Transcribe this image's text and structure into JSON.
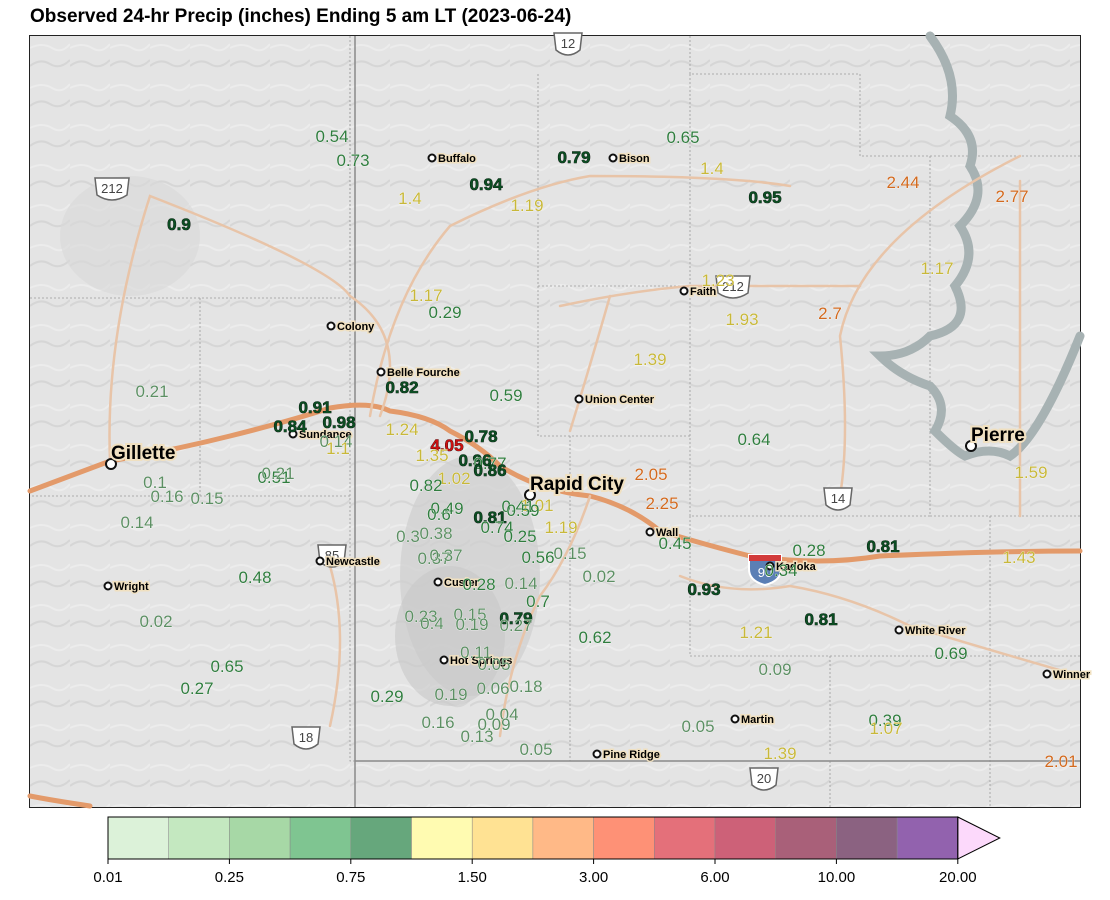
{
  "title": "Observed 24-hr Precip (inches) Ending 5 am LT (2023-06-24)",
  "colors": {
    "dark_green": "#0b4d22",
    "green": "#2f7d3e",
    "light_green": "#5c8f63",
    "yellow": "#c8b83a",
    "orange": "#d2691e",
    "red": "#cc1111"
  },
  "legend": {
    "bins": [
      "#dcf2d9",
      "#c4e8c0",
      "#a7d8a6",
      "#7fc591",
      "#66a77c",
      "#fffbb1",
      "#ffe293",
      "#ffb987",
      "#fe9176",
      "#e4707a",
      "#cd6178",
      "#a96079",
      "#8b6281",
      "#9262ae",
      "#fcd9fb"
    ],
    "ticks": [
      "0.01",
      "0.25",
      "0.75",
      "1.50",
      "3.00",
      "6.00",
      "10.00",
      "20.00"
    ]
  },
  "cities": [
    {
      "name": "Buffalo"
    },
    {
      "name": "Bison"
    },
    {
      "name": "Colony"
    },
    {
      "name": "Belle Fourche"
    },
    {
      "name": "Faith"
    },
    {
      "name": "Union Center"
    },
    {
      "name": "Sundance"
    },
    {
      "name": "Gillette"
    },
    {
      "name": "Pierre"
    },
    {
      "name": "Rapid City"
    },
    {
      "name": "Wall"
    },
    {
      "name": "Kadoka"
    },
    {
      "name": "Newcastle"
    },
    {
      "name": "Custer"
    },
    {
      "name": "Wright"
    },
    {
      "name": "White River"
    },
    {
      "name": "Hot Springs"
    },
    {
      "name": "Winner"
    },
    {
      "name": "Martin"
    },
    {
      "name": "Pine Ridge"
    }
  ],
  "shields": [
    {
      "label": "12"
    },
    {
      "label": "212"
    },
    {
      "label": "212"
    },
    {
      "label": "85"
    },
    {
      "label": "14"
    },
    {
      "label": "90"
    },
    {
      "label": "18"
    },
    {
      "label": "20"
    }
  ],
  "observations": [
    {
      "value": "0.54",
      "cat": "green"
    },
    {
      "value": "0.73",
      "cat": "green"
    },
    {
      "value": "0.9",
      "cat": "dark_green"
    },
    {
      "value": "0.94",
      "cat": "dark_green"
    },
    {
      "value": "1.4",
      "cat": "yellow"
    },
    {
      "value": "1.19",
      "cat": "yellow"
    },
    {
      "value": "0.79",
      "cat": "dark_green"
    },
    {
      "value": "0.65",
      "cat": "green"
    },
    {
      "value": "1.4",
      "cat": "yellow"
    },
    {
      "value": "0.95",
      "cat": "dark_green"
    },
    {
      "value": "2.44",
      "cat": "orange"
    },
    {
      "value": "2.77",
      "cat": "orange"
    },
    {
      "value": "1.17",
      "cat": "yellow"
    },
    {
      "value": "1.23",
      "cat": "yellow"
    },
    {
      "value": "1.17",
      "cat": "yellow"
    },
    {
      "value": "0.29",
      "cat": "green"
    },
    {
      "value": "1.93",
      "cat": "yellow"
    },
    {
      "value": "2.7",
      "cat": "orange"
    },
    {
      "value": "1.39",
      "cat": "yellow"
    },
    {
      "value": "0.21",
      "cat": "light_green"
    },
    {
      "value": "0.82",
      "cat": "dark_green"
    },
    {
      "value": "0.59",
      "cat": "green"
    },
    {
      "value": "0.91",
      "cat": "dark_green"
    },
    {
      "value": "0.84",
      "cat": "dark_green"
    },
    {
      "value": "0.98",
      "cat": "dark_green"
    },
    {
      "value": "1.24",
      "cat": "yellow"
    },
    {
      "value": "0.78",
      "cat": "dark_green"
    },
    {
      "value": "0.14",
      "cat": "light_green"
    },
    {
      "value": "1.1",
      "cat": "yellow"
    },
    {
      "value": "4.05",
      "cat": "red"
    },
    {
      "value": "1.35",
      "cat": "yellow"
    },
    {
      "value": "0.96",
      "cat": "dark_green"
    },
    {
      "value": "0.77",
      "cat": "green"
    },
    {
      "value": "0.86",
      "cat": "dark_green"
    },
    {
      "value": "1.02",
      "cat": "yellow"
    },
    {
      "value": "0.82",
      "cat": "green"
    },
    {
      "value": "0.64",
      "cat": "green"
    },
    {
      "value": "2.05",
      "cat": "orange"
    },
    {
      "value": "2.25",
      "cat": "orange"
    },
    {
      "value": "1.59",
      "cat": "yellow"
    },
    {
      "value": "0.1",
      "cat": "light_green"
    },
    {
      "value": "0.51",
      "cat": "green"
    },
    {
      "value": "0.21",
      "cat": "light_green"
    },
    {
      "value": "0.16",
      "cat": "light_green"
    },
    {
      "value": "0.15",
      "cat": "light_green"
    },
    {
      "value": "0.14",
      "cat": "light_green"
    },
    {
      "value": "0.49",
      "cat": "green"
    },
    {
      "value": "0.6",
      "cat": "green"
    },
    {
      "value": "0.81",
      "cat": "dark_green"
    },
    {
      "value": "0.41",
      "cat": "green"
    },
    {
      "value": "1.01",
      "cat": "yellow"
    },
    {
      "value": "0.59",
      "cat": "green"
    },
    {
      "value": "0.74",
      "cat": "green"
    },
    {
      "value": "1.19",
      "cat": "yellow"
    },
    {
      "value": "0.3",
      "cat": "light_green"
    },
    {
      "value": "0.38",
      "cat": "light_green"
    },
    {
      "value": "0.25",
      "cat": "green"
    },
    {
      "value": "0.45",
      "cat": "green"
    },
    {
      "value": "0.37",
      "cat": "light_green"
    },
    {
      "value": "0.37",
      "cat": "light_green"
    },
    {
      "value": "0.56",
      "cat": "green"
    },
    {
      "value": "0.15",
      "cat": "light_green"
    },
    {
      "value": "0.28",
      "cat": "green"
    },
    {
      "value": "0.81",
      "cat": "dark_green"
    },
    {
      "value": "0.34",
      "cat": "green"
    },
    {
      "value": "1.43",
      "cat": "yellow"
    },
    {
      "value": "0.48",
      "cat": "green"
    },
    {
      "value": "0.02",
      "cat": "light_green"
    },
    {
      "value": "0.28",
      "cat": "green"
    },
    {
      "value": "0.14",
      "cat": "light_green"
    },
    {
      "value": "0.93",
      "cat": "dark_green"
    },
    {
      "value": "0.7",
      "cat": "green"
    },
    {
      "value": "0.02",
      "cat": "light_green"
    },
    {
      "value": "0.23",
      "cat": "light_green"
    },
    {
      "value": "0.15",
      "cat": "light_green"
    },
    {
      "value": "0.79",
      "cat": "dark_green"
    },
    {
      "value": "0.4",
      "cat": "light_green"
    },
    {
      "value": "0.19",
      "cat": "light_green"
    },
    {
      "value": "0.27",
      "cat": "light_green"
    },
    {
      "value": "0.81",
      "cat": "dark_green"
    },
    {
      "value": "1.21",
      "cat": "yellow"
    },
    {
      "value": "0.62",
      "cat": "green"
    },
    {
      "value": "0.65",
      "cat": "green"
    },
    {
      "value": "0.11",
      "cat": "light_green"
    },
    {
      "value": "0.05",
      "cat": "light_green"
    },
    {
      "value": "0.69",
      "cat": "green"
    },
    {
      "value": "0.09",
      "cat": "light_green"
    },
    {
      "value": "0.27",
      "cat": "green"
    },
    {
      "value": "0.29",
      "cat": "green"
    },
    {
      "value": "0.19",
      "cat": "light_green"
    },
    {
      "value": "0.06",
      "cat": "light_green"
    },
    {
      "value": "0.18",
      "cat": "light_green"
    },
    {
      "value": "0.04",
      "cat": "light_green"
    },
    {
      "value": "0.16",
      "cat": "light_green"
    },
    {
      "value": "0.09",
      "cat": "light_green"
    },
    {
      "value": "0.05",
      "cat": "light_green"
    },
    {
      "value": "0.39",
      "cat": "green"
    },
    {
      "value": "1.07",
      "cat": "yellow"
    },
    {
      "value": "0.13",
      "cat": "light_green"
    },
    {
      "value": "1.39",
      "cat": "yellow"
    },
    {
      "value": "0.05",
      "cat": "light_green"
    },
    {
      "value": "2.01",
      "cat": "orange"
    }
  ]
}
